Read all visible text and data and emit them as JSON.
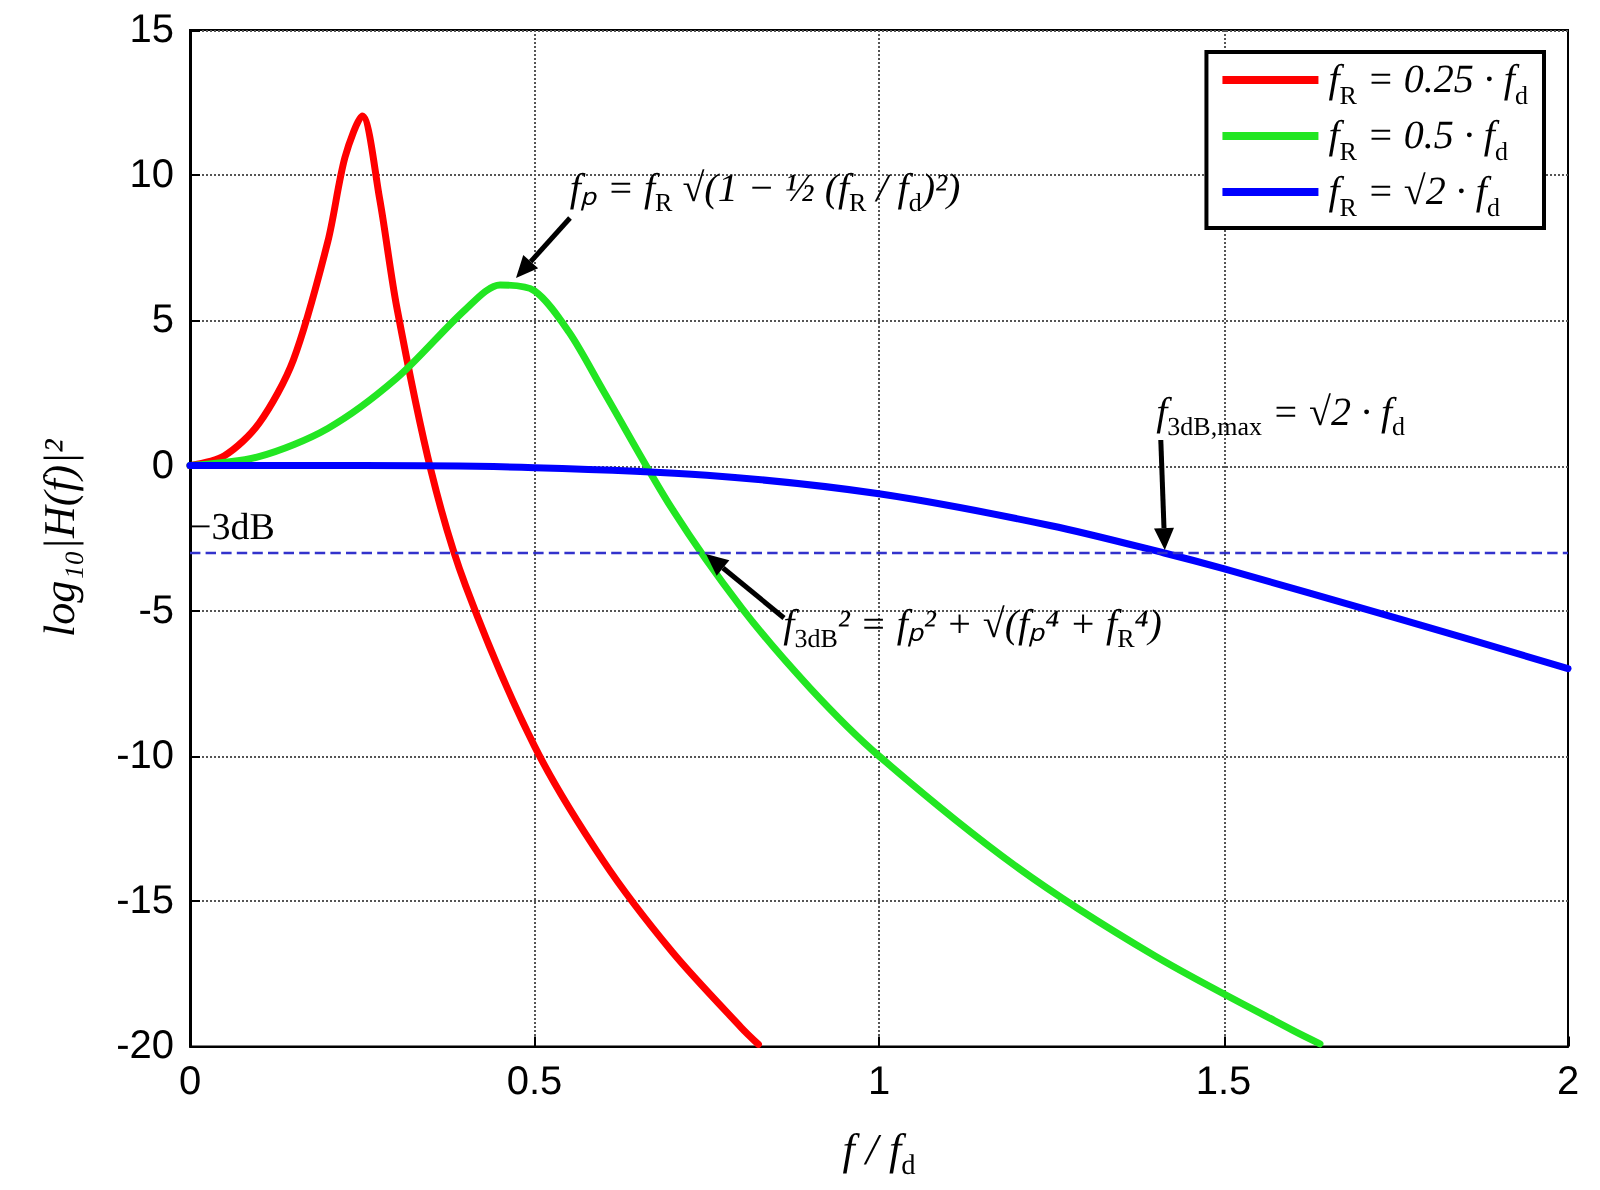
{
  "chart_data": {
    "type": "line",
    "xlabel": "f / f$_{d}$",
    "ylabel": "log₁₀|H(f)|²",
    "xlim": [
      0,
      2
    ],
    "xticks": [
      0,
      0.5,
      1,
      1.5,
      2
    ],
    "ylim": [
      -20,
      15
    ],
    "yticks": [
      -20,
      -15,
      -10,
      -5,
      0,
      5,
      10,
      15
    ],
    "grid": true,
    "legend": "top right",
    "series": [
      {
        "name": "f$_{R}$ = 0.25 · f$_{d}$",
        "color": "#ff0000",
        "x": [
          0,
          0.05,
          0.1,
          0.15,
          0.2,
          0.225,
          0.25,
          0.275,
          0.3,
          0.35,
          0.4,
          0.5,
          0.6,
          0.7,
          0.8,
          0.825
        ],
        "values": [
          0,
          0.34,
          1.45,
          3.64,
          7.71,
          10.62,
          12.04,
          9.22,
          5.47,
          -0.19,
          -4.14,
          -9.66,
          -13.62,
          -16.75,
          -19.35,
          -19.93
        ]
      },
      {
        "name": "f$_{R}$ = 0.5 · f$_{d}$",
        "color": "#22e622",
        "x": [
          0,
          0.1,
          0.2,
          0.3,
          0.4,
          0.45,
          0.5,
          0.55,
          0.6,
          0.7,
          0.8,
          0.9,
          1.0,
          1.2,
          1.4,
          1.6,
          1.64
        ],
        "values": [
          0,
          0.31,
          1.28,
          3.01,
          5.38,
          6.22,
          6.02,
          4.6,
          2.57,
          -1.5,
          -4.88,
          -7.66,
          -10,
          -13.82,
          -16.88,
          -19.44,
          -19.91
        ]
      },
      {
        "name": "f$_{R}$ = √2 · f$_{d}$",
        "color": "#0000ff",
        "x": [
          0,
          0.25,
          0.5,
          0.75,
          1.0,
          1.25,
          1.414,
          1.5,
          1.75,
          2.0
        ],
        "values": [
          0,
          0,
          -0.07,
          -0.33,
          -0.97,
          -2.07,
          -3.01,
          -3.55,
          -5.24,
          -6.99
        ]
      }
    ],
    "ref_lines": [
      {
        "axis": "y",
        "value": -3,
        "label": "−3dB",
        "color": "#3333cc",
        "line_style": "dashed"
      }
    ],
    "annotations": [
      {
        "text": "fₚ = f$_{R}$ √(1 − ½ (f$_{R}$ / f$_{d}$)²)",
        "x": 0.47,
        "y": 6.3
      },
      {
        "text": "f$_{3dB,max}$ = √2 · f$_{d}$",
        "x": 1.414,
        "y": -3
      },
      {
        "text": "f$_{3dB}$² = fₚ² + √(fₚ⁴ + f$_{R}$⁴)",
        "x": 0.745,
        "y": -3
      }
    ]
  }
}
